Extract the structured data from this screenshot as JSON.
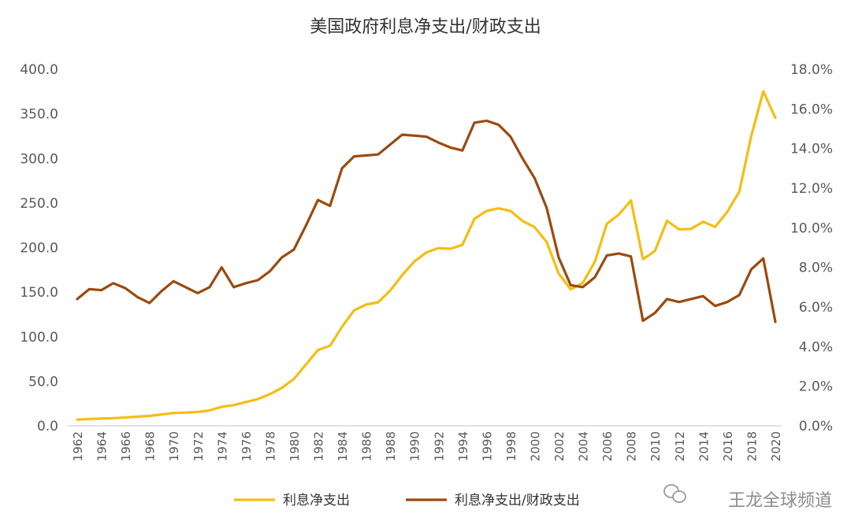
{
  "chart_data": {
    "type": "line",
    "title": "美国政府利息净支出/财政支出",
    "xlabel": "",
    "ylabel_left": "",
    "ylabel_right": "",
    "ylim_left": [
      0,
      400
    ],
    "ylim_right": [
      0,
      18
    ],
    "y_left_ticks": [
      "0.0",
      "50.0",
      "100.0",
      "150.0",
      "200.0",
      "250.0",
      "300.0",
      "350.0",
      "400.0"
    ],
    "y_right_ticks": [
      "0.0%",
      "2.0%",
      "4.0%",
      "6.0%",
      "8.0%",
      "10.0%",
      "12.0%",
      "14.0%",
      "16.0%",
      "18.0%"
    ],
    "x_tick_labels": [
      "1962",
      "1964",
      "1966",
      "1968",
      "1970",
      "1972",
      "1974",
      "1976",
      "1978",
      "1980",
      "1982",
      "1984",
      "1986",
      "1988",
      "1990",
      "1992",
      "1994",
      "1996",
      "1998",
      "2000",
      "2002",
      "2004",
      "2006",
      "2008",
      "2010",
      "2012",
      "2014",
      "2016",
      "2018",
      "2020"
    ],
    "x": [
      1962,
      1963,
      1964,
      1965,
      1966,
      1967,
      1968,
      1969,
      1970,
      1971,
      1972,
      1973,
      1974,
      1975,
      1976,
      1977,
      1978,
      1979,
      1980,
      1981,
      1982,
      1983,
      1984,
      1985,
      1986,
      1987,
      1988,
      1989,
      1990,
      1991,
      1992,
      1993,
      1994,
      1995,
      1996,
      1997,
      1998,
      1999,
      2000,
      2001,
      2002,
      2003,
      2004,
      2005,
      2006,
      2007,
      2008,
      2009,
      2010,
      2011,
      2012,
      2013,
      2014,
      2015,
      2016,
      2017,
      2018,
      2019,
      2020
    ],
    "grid": false,
    "legend_position": "bottom",
    "series": [
      {
        "name": "利息净支出",
        "axis": "left",
        "color": "#F5BD12",
        "values": [
          6.9,
          7.7,
          8.2,
          8.6,
          9.4,
          10.3,
          11.1,
          12.7,
          14.4,
          14.8,
          15.5,
          17.3,
          21.4,
          23.2,
          26.7,
          29.9,
          35.5,
          42.6,
          52.5,
          68.8,
          85.0,
          89.8,
          111.1,
          129.5,
          136.0,
          138.6,
          151.8,
          169.0,
          184.3,
          194.4,
          199.3,
          198.7,
          202.9,
          232.1,
          241.1,
          244.0,
          241.1,
          229.8,
          222.9,
          206.2,
          170.9,
          153.1,
          160.2,
          184.0,
          226.6,
          237.1,
          252.8,
          186.9,
          196.2,
          230.0,
          220.4,
          220.9,
          229.0,
          223.2,
          240.0,
          262.6,
          325.0,
          375.2,
          345.5
        ]
      },
      {
        "name": "利息净支出/财政支出",
        "axis": "right",
        "color": "#9B4A0F",
        "values": [
          6.4,
          6.9,
          6.85,
          7.2,
          6.95,
          6.5,
          6.2,
          6.8,
          7.3,
          7.0,
          6.7,
          7.0,
          8.0,
          7.0,
          7.2,
          7.35,
          7.8,
          8.5,
          8.9,
          10.1,
          11.4,
          11.1,
          13.0,
          13.6,
          13.65,
          13.7,
          14.2,
          14.7,
          14.65,
          14.6,
          14.3,
          14.05,
          13.9,
          15.3,
          15.4,
          15.2,
          14.6,
          13.5,
          12.5,
          11.0,
          8.5,
          7.1,
          7.0,
          7.5,
          8.6,
          8.7,
          8.55,
          5.3,
          5.7,
          6.4,
          6.25,
          6.4,
          6.55,
          6.05,
          6.25,
          6.6,
          7.9,
          8.45,
          5.25
        ]
      }
    ]
  },
  "watermark": "王龙全球频道"
}
